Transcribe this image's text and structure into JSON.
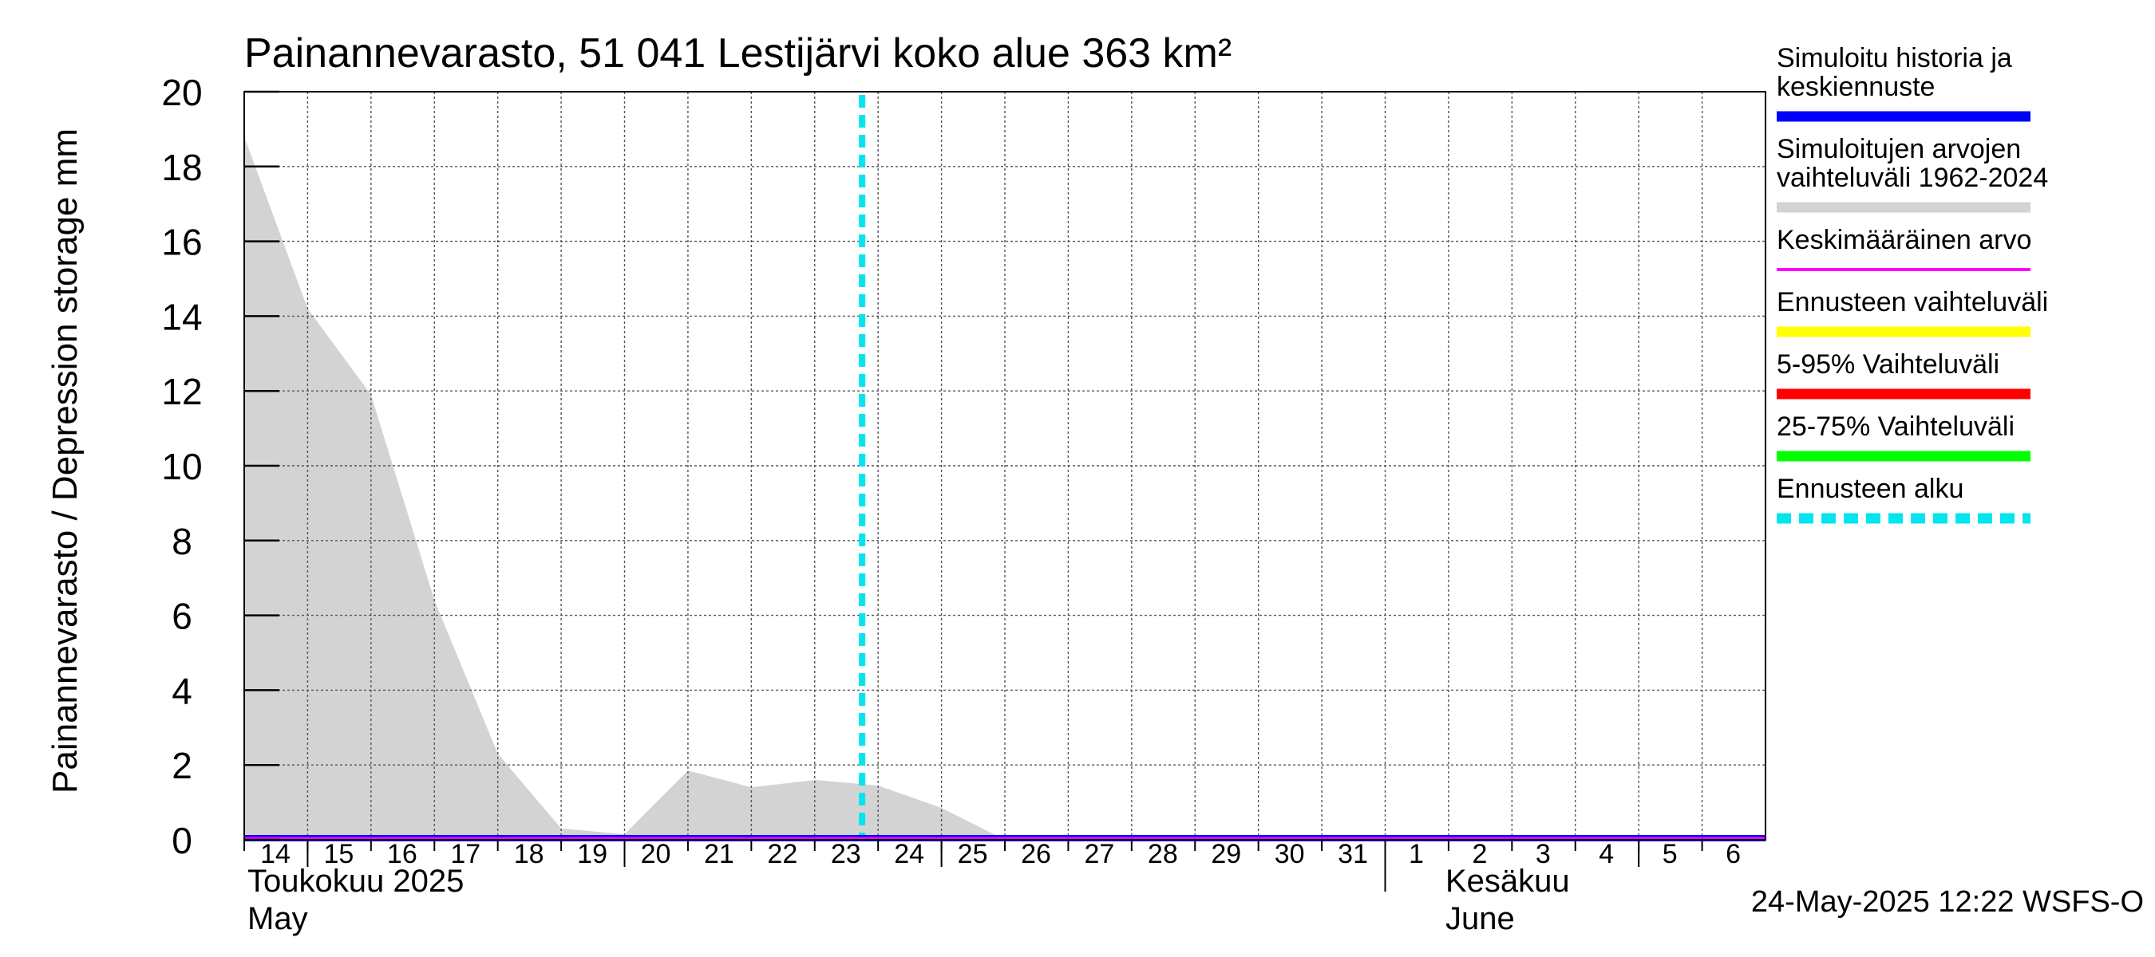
{
  "chart_data": {
    "type": "area",
    "title": "Painannevarasto, 51 041 Lestijärvi koko alue 363 km²",
    "ylabel": "Painannevarasto / Depression storage    mm",
    "ylim": [
      0,
      20
    ],
    "yticks": [
      0,
      2,
      4,
      6,
      8,
      10,
      12,
      14,
      16,
      18,
      20
    ],
    "x_day_range": [
      14,
      38
    ],
    "day_ticks": [
      {
        "day": 14,
        "label": "14"
      },
      {
        "day": 15,
        "label": "15"
      },
      {
        "day": 16,
        "label": "16"
      },
      {
        "day": 17,
        "label": "17"
      },
      {
        "day": 18,
        "label": "18"
      },
      {
        "day": 19,
        "label": "19"
      },
      {
        "day": 20,
        "label": "20"
      },
      {
        "day": 21,
        "label": "21"
      },
      {
        "day": 22,
        "label": "22"
      },
      {
        "day": 23,
        "label": "23"
      },
      {
        "day": 24,
        "label": "24"
      },
      {
        "day": 25,
        "label": "25"
      },
      {
        "day": 26,
        "label": "26"
      },
      {
        "day": 27,
        "label": "27"
      },
      {
        "day": 28,
        "label": "28"
      },
      {
        "day": 29,
        "label": "29"
      },
      {
        "day": 30,
        "label": "30"
      },
      {
        "day": 31,
        "label": "31"
      },
      {
        "day": 32,
        "label": "1"
      },
      {
        "day": 33,
        "label": "2"
      },
      {
        "day": 34,
        "label": "3"
      },
      {
        "day": 35,
        "label": "4"
      },
      {
        "day": 36,
        "label": "5"
      },
      {
        "day": 37,
        "label": "6"
      }
    ],
    "week_ticks": [
      15,
      20,
      25,
      36
    ],
    "month_separator_day": 32,
    "months": [
      {
        "day": 14,
        "line1": "Toukokuu  2025",
        "line2": "May"
      },
      {
        "day": 32.9,
        "line1": "Kesäkuu",
        "line2": "June"
      }
    ],
    "forecast_start_day": 24,
    "series": [
      {
        "name": "Simuloitujen arvojen vaihteluväli 1962-2024",
        "kind": "band",
        "color": "#d3d3d3",
        "x": [
          14,
          15,
          16,
          17,
          18,
          19,
          20,
          21,
          22,
          23,
          24,
          25,
          26,
          27,
          38
        ],
        "upper": [
          18.8,
          14.2,
          11.9,
          6.4,
          2.3,
          0.3,
          0.15,
          1.85,
          1.4,
          1.6,
          1.45,
          0.85,
          0.0,
          0.0,
          0.0
        ],
        "lower": [
          0,
          0,
          0,
          0,
          0,
          0,
          0,
          0,
          0,
          0,
          0,
          0,
          0,
          0,
          0
        ]
      },
      {
        "name": "Simuloitu historia ja keskiennuste",
        "kind": "line",
        "color": "#0000ff",
        "x": [
          14,
          38
        ],
        "values": [
          0,
          0
        ]
      },
      {
        "name": "Keskimääräinen arvo",
        "kind": "line",
        "color": "#ff00ff",
        "x": [
          14,
          38
        ],
        "values": [
          0,
          0
        ]
      }
    ],
    "legend": [
      {
        "label_lines": [
          "Simuloitu historia ja",
          "keskiennuste"
        ],
        "color": "#0000ff",
        "style": "solid"
      },
      {
        "label_lines": [
          "Simuloitujen arvojen",
          "vaihteluväli 1962-2024"
        ],
        "color": "#d3d3d3",
        "style": "solid"
      },
      {
        "label_lines": [
          "Keskimääräinen arvo"
        ],
        "color": "#ff00ff",
        "style": "thin"
      },
      {
        "label_lines": [
          "Ennusteen vaihteluväli"
        ],
        "color": "#ffff00",
        "style": "solid"
      },
      {
        "label_lines": [
          "5-95% Vaihteluväli"
        ],
        "color": "#ff0000",
        "style": "solid"
      },
      {
        "label_lines": [
          "25-75% Vaihteluväli"
        ],
        "color": "#00ff00",
        "style": "solid"
      },
      {
        "label_lines": [
          "Ennusteen alku"
        ],
        "color": "#00e5ee",
        "style": "dashed"
      }
    ],
    "footer": "24-May-2025 12:22 WSFS-O",
    "grid": true
  }
}
